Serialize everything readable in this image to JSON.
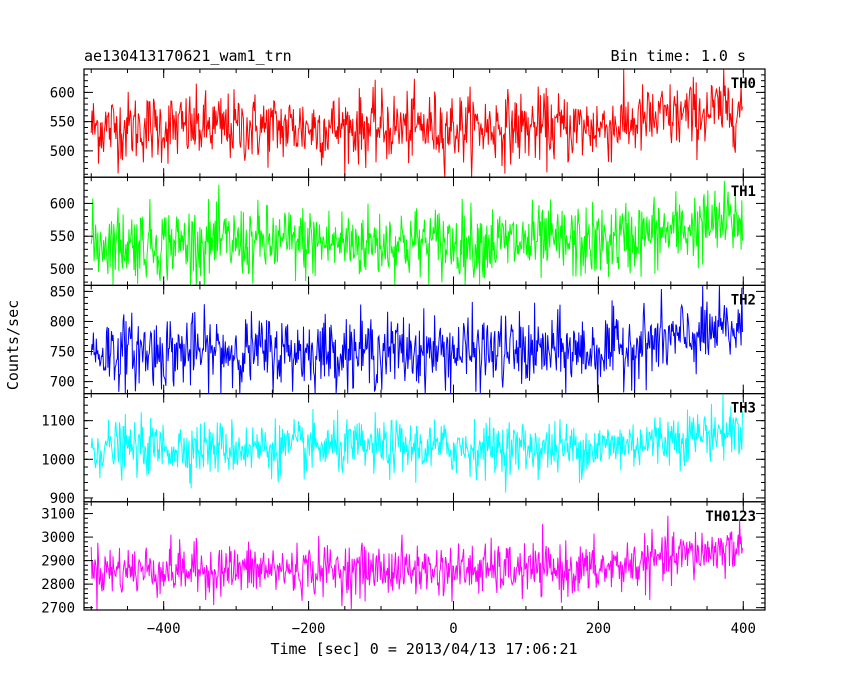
{
  "header": {
    "title": "ae130413170621_wam1_trn",
    "bin_time": "Bin time: 1.0 s"
  },
  "chart_data": {
    "type": "line",
    "title": "ae130413170621_wam1_trn",
    "subtitle": "Bin time: 1.0 s",
    "xlabel": "Time [sec] 0 = 2013/04/13 17:06:21",
    "ylabel": "Counts/sec",
    "xlim": [
      -510,
      430
    ],
    "x_ticks": [
      -400,
      -200,
      0,
      200,
      400
    ],
    "x_tick_labels": [
      "−400",
      "−200",
      "0",
      "200",
      "400"
    ],
    "x_range": [
      -500,
      399
    ],
    "bin_time_s": 1.0,
    "grid": false,
    "panels": [
      {
        "name": "TH0",
        "color": "#ff0000",
        "ylim": [
          455,
          640
        ],
        "y_ticks": [
          500,
          550,
          600
        ],
        "baseline": 540,
        "amplitude": 30,
        "range_observed": [
          460,
          640
        ],
        "trend": "flat ~540, slightly higher toward end"
      },
      {
        "name": "TH1",
        "color": "#00ff00",
        "ylim": [
          475,
          640
        ],
        "y_ticks": [
          500,
          550,
          600
        ],
        "baseline": 540,
        "amplitude": 28,
        "range_observed": [
          475,
          640
        ],
        "trend": "flat ~540"
      },
      {
        "name": "TH2",
        "color": "#0000ff",
        "ylim": [
          680,
          860
        ],
        "y_ticks": [
          700,
          750,
          800,
          850
        ],
        "baseline": 750,
        "amplitude": 30,
        "range_observed": [
          680,
          860
        ],
        "trend": "flat ~750, rising to ~770 after 250 s"
      },
      {
        "name": "TH3",
        "color": "#00ffff",
        "ylim": [
          890,
          1170
        ],
        "y_ticks": [
          900,
          1000,
          1100
        ],
        "baseline": 1030,
        "amplitude": 35,
        "range_observed": [
          890,
          1170
        ],
        "trend": "~1030, rising to ~1060 at end"
      },
      {
        "name": "TH0123",
        "color": "#ff00ff",
        "ylim": [
          2690,
          3150
        ],
        "y_ticks": [
          2700,
          2800,
          2900,
          3000,
          3100
        ],
        "baseline": 2860,
        "amplitude": 55,
        "range_observed": [
          2690,
          3150
        ],
        "trend": "~2860, rising to ~2990 after 250 s"
      }
    ]
  }
}
